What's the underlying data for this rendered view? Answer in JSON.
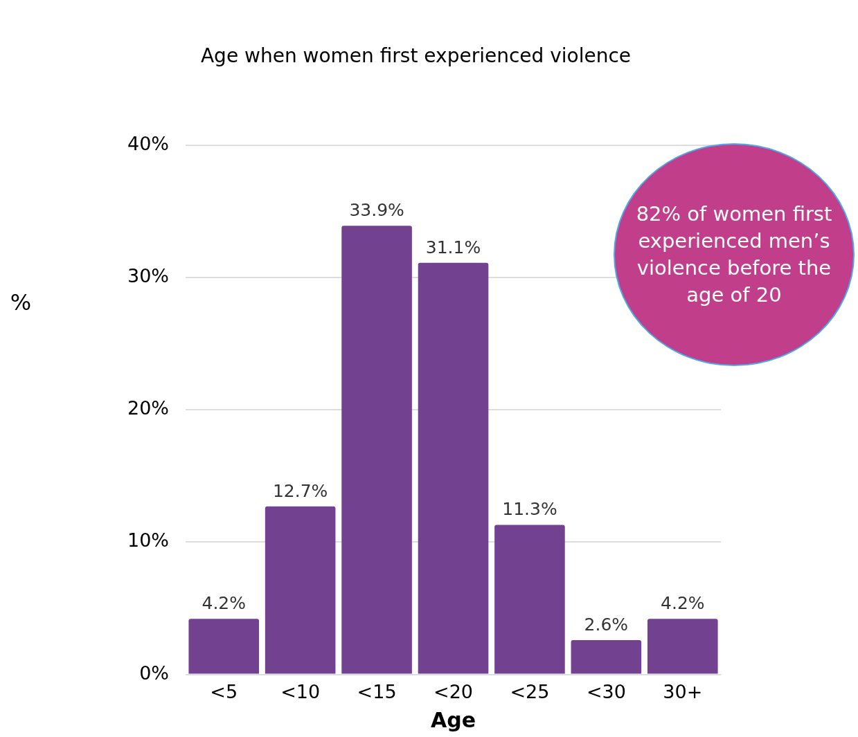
{
  "chart_data": {
    "type": "bar",
    "title": "Age when women first experienced violence",
    "xlabel": "Age",
    "ylabel": "%",
    "categories": [
      "<5",
      "<10",
      "<15",
      "<20",
      "<25",
      "<30",
      "30+"
    ],
    "values": [
      4.2,
      12.7,
      33.9,
      31.1,
      11.3,
      2.6,
      4.2
    ],
    "value_labels": [
      "4.2%",
      "12.7%",
      "33.9%",
      "31.1%",
      "11.3%",
      "2.6%",
      "4.2%"
    ],
    "color": "#72418f",
    "ylim": [
      0,
      40
    ],
    "yticks": [
      {
        "value": 0,
        "label": "0%"
      },
      {
        "value": 10,
        "label": "10%"
      },
      {
        "value": 20,
        "label": "20%"
      },
      {
        "value": 30,
        "label": "30%"
      },
      {
        "value": 40,
        "label": "40%"
      }
    ],
    "grid": "y",
    "annotations": [
      "82% of women first experienced men’s violence before the age of 20"
    ]
  }
}
